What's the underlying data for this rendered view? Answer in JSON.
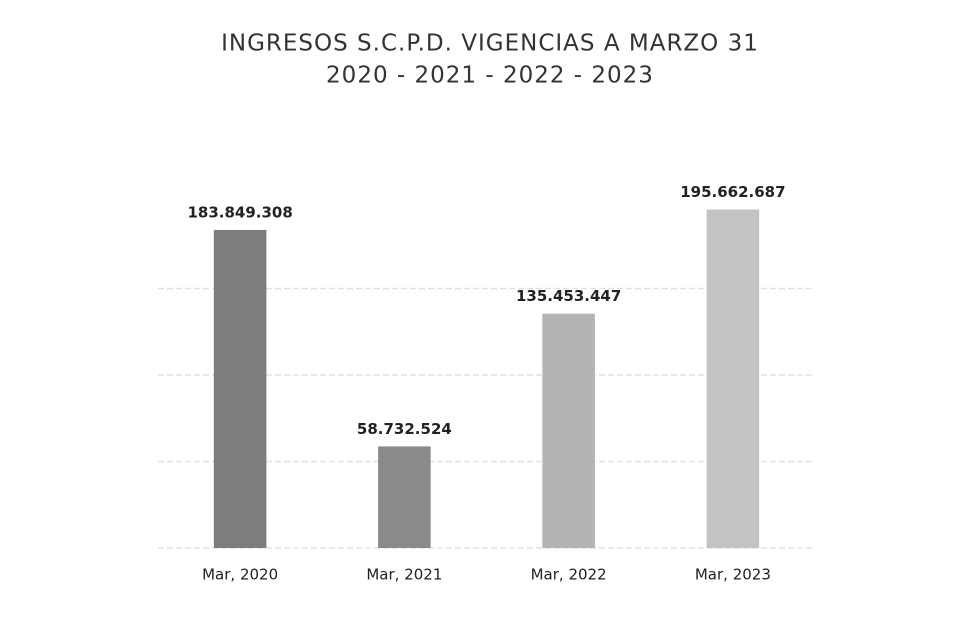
{
  "chart_data": {
    "type": "bar",
    "title": "INGRESOS S.C.P.D. VIGENCIAS A MARZO 31",
    "subtitle": "2020 - 2021 - 2022 - 2023",
    "categories": [
      "Mar, 2020",
      "Mar, 2021",
      "Mar, 2022",
      "Mar, 2023"
    ],
    "values": [
      183849308,
      58732524,
      135453447,
      195662687
    ],
    "value_labels": [
      "183.849.308",
      "58.732.524",
      "135.453.447",
      "195.662.687"
    ],
    "colors": [
      "#7d7d7d",
      "#8a8a8a",
      "#b4b4b4",
      "#c3c3c3"
    ],
    "ylim": [
      0,
      200000000
    ],
    "yticks": [
      0,
      50000000,
      100000000,
      150000000
    ],
    "grid": true
  }
}
